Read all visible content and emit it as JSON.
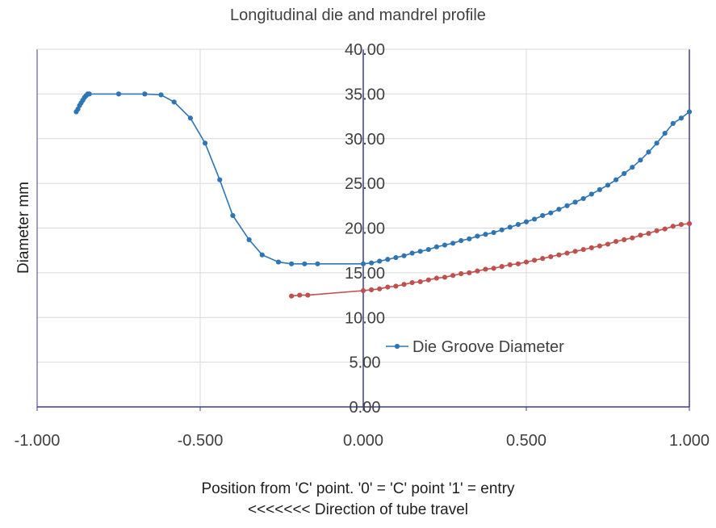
{
  "chart_data": {
    "type": "scatter",
    "title": "Longitudinal die and mandrel profile",
    "xlabel_line1": "Position from 'C' point. '0' = 'C' point  '1' = entry",
    "xlabel_line2": "<<<<<<< Direction of tube travel",
    "ylabel": "Diameter mm",
    "xlim": [
      -1.0,
      1.0
    ],
    "ylim": [
      0.0,
      40.0
    ],
    "x_ticks": [
      "-1.000",
      "-0.500",
      "0.000",
      "0.500",
      "1.000"
    ],
    "y_ticks": [
      "0.00",
      "5.00",
      "10.00",
      "15.00",
      "20.00",
      "25.00",
      "30.00",
      "35.00",
      "40.00"
    ],
    "grid": true,
    "legend_position": "right-middle",
    "series": [
      {
        "name": "Die Groove Diameter",
        "color": "#2e75b6",
        "marker": "circle",
        "x": [
          -0.88,
          -0.875,
          -0.87,
          -0.865,
          -0.86,
          -0.855,
          -0.85,
          -0.845,
          -0.84,
          -0.75,
          -0.67,
          -0.62,
          -0.58,
          -0.53,
          -0.485,
          -0.44,
          -0.4,
          -0.35,
          -0.31,
          -0.26,
          -0.22,
          -0.18,
          -0.14,
          0.0,
          0.025,
          0.05,
          0.075,
          0.1,
          0.125,
          0.15,
          0.175,
          0.2,
          0.225,
          0.25,
          0.275,
          0.3,
          0.325,
          0.35,
          0.375,
          0.4,
          0.425,
          0.45,
          0.475,
          0.5,
          0.525,
          0.55,
          0.575,
          0.6,
          0.625,
          0.65,
          0.675,
          0.7,
          0.725,
          0.75,
          0.775,
          0.8,
          0.825,
          0.85,
          0.875,
          0.9,
          0.925,
          0.95,
          0.975,
          1.0
        ],
        "y": [
          33.0,
          33.3,
          33.7,
          34.0,
          34.3,
          34.6,
          34.8,
          35.0,
          35.0,
          35.0,
          35.0,
          34.9,
          34.1,
          32.3,
          29.5,
          25.4,
          21.4,
          18.7,
          17.0,
          16.2,
          16.0,
          16.0,
          16.0,
          16.0,
          16.1,
          16.3,
          16.5,
          16.7,
          16.9,
          17.2,
          17.4,
          17.6,
          17.9,
          18.1,
          18.3,
          18.6,
          18.8,
          19.1,
          19.3,
          19.5,
          19.8,
          20.1,
          20.4,
          20.7,
          21.0,
          21.4,
          21.7,
          22.1,
          22.5,
          22.9,
          23.3,
          23.8,
          24.3,
          24.8,
          25.4,
          26.1,
          26.8,
          27.6,
          28.5,
          29.5,
          30.6,
          31.7,
          32.3,
          33.0
        ]
      },
      {
        "color": "#c0504d",
        "marker": "circle",
        "x": [
          -0.22,
          -0.195,
          -0.17,
          0.0,
          0.025,
          0.05,
          0.075,
          0.1,
          0.125,
          0.15,
          0.175,
          0.2,
          0.225,
          0.25,
          0.275,
          0.3,
          0.325,
          0.35,
          0.375,
          0.4,
          0.425,
          0.45,
          0.475,
          0.5,
          0.525,
          0.55,
          0.575,
          0.6,
          0.625,
          0.65,
          0.675,
          0.7,
          0.725,
          0.75,
          0.775,
          0.8,
          0.825,
          0.85,
          0.875,
          0.9,
          0.925,
          0.95,
          0.975,
          1.0
        ],
        "y": [
          12.4,
          12.5,
          12.5,
          13.0,
          13.1,
          13.2,
          13.4,
          13.5,
          13.7,
          13.9,
          14.0,
          14.2,
          14.4,
          14.5,
          14.7,
          14.9,
          15.0,
          15.2,
          15.4,
          15.5,
          15.7,
          15.9,
          16.0,
          16.2,
          16.4,
          16.6,
          16.8,
          17.0,
          17.2,
          17.4,
          17.6,
          17.8,
          18.0,
          18.2,
          18.5,
          18.7,
          18.9,
          19.2,
          19.4,
          19.7,
          19.9,
          20.2,
          20.4,
          20.5
        ]
      }
    ]
  }
}
